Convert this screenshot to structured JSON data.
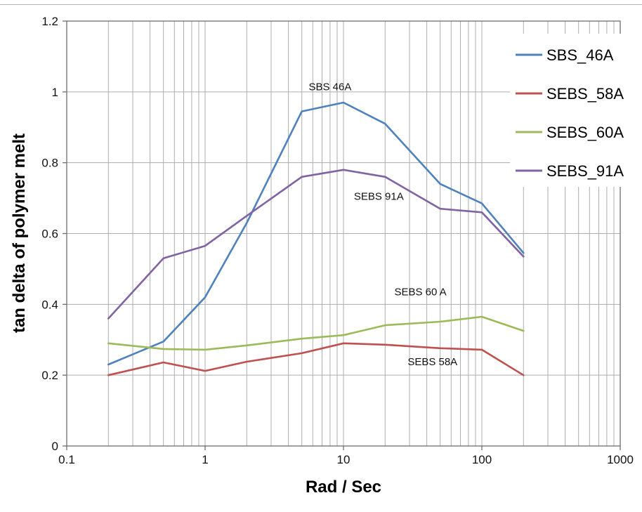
{
  "chart_data": {
    "type": "line",
    "title": "",
    "xlabel": "Rad / Sec",
    "ylabel": "tan delta of polymer melt",
    "x_scale": "log",
    "xlim": [
      0.1,
      1000
    ],
    "ylim": [
      0,
      1.2
    ],
    "x": [
      0.2,
      0.5,
      1,
      2,
      5,
      10,
      20,
      50,
      100,
      200
    ],
    "series": [
      {
        "name": "SBS_46A",
        "color": "#4F81BD",
        "values": [
          0.23,
          0.295,
          0.42,
          0.63,
          0.945,
          0.97,
          0.91,
          0.74,
          0.685,
          0.545
        ]
      },
      {
        "name": "SEBS_58A",
        "color": "#C0504D",
        "values": [
          0.2,
          0.236,
          0.212,
          0.238,
          0.262,
          0.29,
          0.286,
          0.276,
          0.272,
          0.2
        ]
      },
      {
        "name": "SEBS_60A",
        "color": "#9BBB59",
        "values": [
          0.29,
          0.274,
          0.272,
          0.284,
          0.303,
          0.313,
          0.341,
          0.351,
          0.365,
          0.325
        ]
      },
      {
        "name": "SEBS_91A",
        "color": "#8064A2",
        "values": [
          0.36,
          0.53,
          0.565,
          0.65,
          0.76,
          0.78,
          0.76,
          0.67,
          0.66,
          0.535
        ]
      }
    ],
    "xticks": {
      "values": [
        0.1,
        1,
        10,
        100,
        1000
      ],
      "labels": [
        "0.1",
        "1",
        "10",
        "100",
        "1000"
      ]
    },
    "yticks": {
      "values": [
        0,
        0.2,
        0.4,
        0.6,
        0.8,
        1,
        1.2
      ],
      "labels": [
        "0",
        "0.2",
        "0.4",
        "0.6",
        "0.8",
        "1",
        "1.2"
      ]
    },
    "annotations": [
      {
        "text": "SBS 46A",
        "x": 8,
        "y": 1.005
      },
      {
        "text": "SEBS 91A",
        "x": 18,
        "y": 0.695
      },
      {
        "text": "SEBS 60 A",
        "x": 36,
        "y": 0.425
      },
      {
        "text": "SEBS 58A",
        "x": 44,
        "y": 0.228
      }
    ],
    "legend": {
      "position": "top-right",
      "items": [
        {
          "label": "SBS_46A",
          "color": "#4F81BD"
        },
        {
          "label": "SEBS_58A",
          "color": "#C0504D"
        },
        {
          "label": "SEBS_60A",
          "color": "#9BBB59"
        },
        {
          "label": "SEBS_91A",
          "color": "#8064A2"
        }
      ]
    },
    "grid": {
      "color": "#ADADAD",
      "minor_vertical": true,
      "horizontal_major": true
    },
    "axis_color": "#6E6E6E",
    "text_color": "#111111"
  }
}
